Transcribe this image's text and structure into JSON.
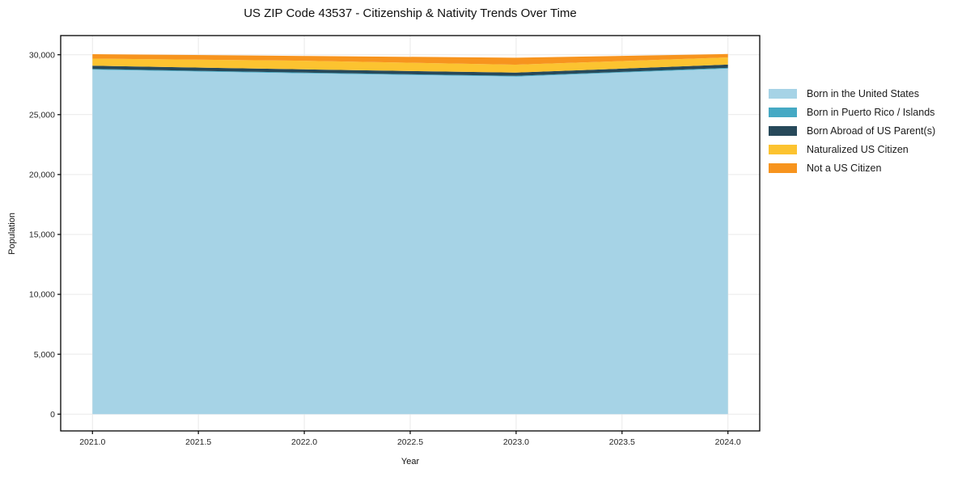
{
  "chart_data": {
    "type": "area",
    "stacked": true,
    "title": "US ZIP Code 43537 - Citizenship & Nativity Trends Over Time",
    "xlabel": "Year",
    "ylabel": "Population",
    "x": [
      2021,
      2022,
      2023,
      2024
    ],
    "series": [
      {
        "name": "Born in the United States",
        "color": "#a6d3e6",
        "values": [
          28750,
          28450,
          28180,
          28840
        ]
      },
      {
        "name": "Born in Puerto Rico / Islands",
        "color": "#45a9c4",
        "values": [
          60,
          60,
          60,
          70
        ]
      },
      {
        "name": "Born Abroad of US Parent(s)",
        "color": "#27495a",
        "values": [
          270,
          270,
          270,
          270
        ]
      },
      {
        "name": "Naturalized US Citizen",
        "color": "#fcc330",
        "values": [
          600,
          720,
          660,
          600
        ]
      },
      {
        "name": "Not a US Citizen",
        "color": "#f7941e",
        "values": [
          370,
          400,
          580,
          280
        ]
      }
    ],
    "xlim": [
      2020.85,
      2024.15
    ],
    "ylim": [
      -1400,
      31600
    ],
    "xticks": [
      2021.0,
      2021.5,
      2022.0,
      2022.5,
      2023.0,
      2023.5,
      2024.0
    ],
    "xtick_labels": [
      "2021.0",
      "2021.5",
      "2022.0",
      "2022.5",
      "2023.0",
      "2023.5",
      "2024.0"
    ],
    "yticks": [
      0,
      5000,
      10000,
      15000,
      20000,
      25000,
      30000
    ],
    "ytick_labels": [
      "0",
      "5,000",
      "10,000",
      "15,000",
      "20,000",
      "25,000",
      "30,000"
    ],
    "grid": true,
    "grid_color": "#e9e9e9",
    "spine_color": "#000000",
    "tick_label_color": "#262626",
    "legend_position": "right"
  }
}
